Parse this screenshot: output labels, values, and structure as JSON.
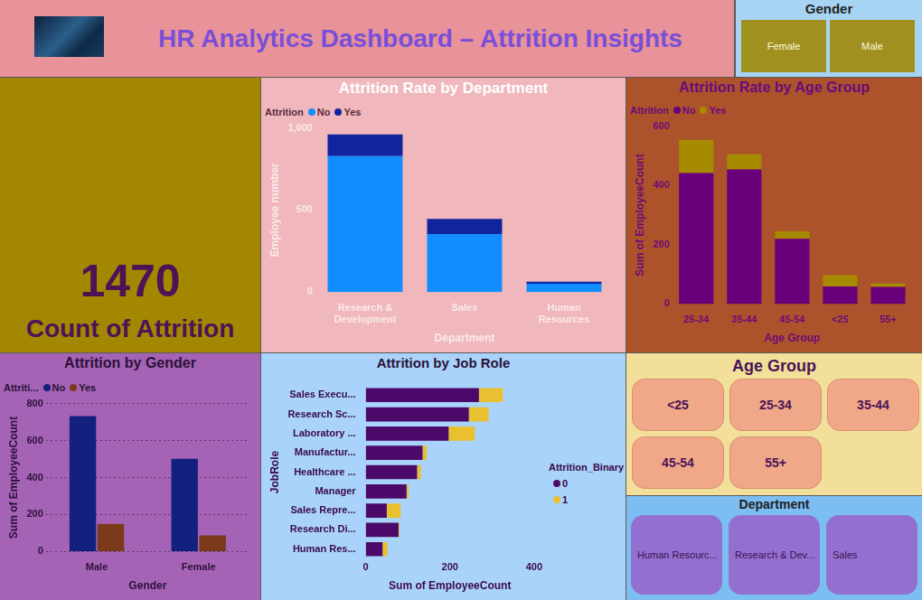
{
  "header": {
    "title": "HR Analytics Dashboard – Attrition Insights"
  },
  "kpi": {
    "value": 1470,
    "label": "Count of Attrition"
  },
  "slicers": [
    {
      "title": "Gender",
      "items": [
        "Female",
        "Male"
      ]
    },
    {
      "title": "Age Group",
      "items": [
        "<25",
        "25-34",
        "35-44",
        "45-54",
        "55+"
      ]
    },
    {
      "title": "Department",
      "items": [
        "Human Resourc...",
        "Research & Dev...",
        "Sales"
      ]
    }
  ],
  "chart_data": [
    {
      "type": "bar",
      "title": "Attrition Rate by Department",
      "legend_title": "Attrition",
      "legend": "top left",
      "stacked": true,
      "grid": false,
      "x_label": "Department",
      "y_label": "Employee number",
      "categories": [
        "Research & Development",
        "Sales",
        "Human Resources"
      ],
      "series": [
        {
          "name": "No",
          "color": "#118dff",
          "values": [
            828,
            354,
            51
          ]
        },
        {
          "name": "Yes",
          "color": "#12239e",
          "values": [
            133,
            92,
            12
          ]
        }
      ],
      "ylim": [
        0,
        1000
      ],
      "yticks": [
        0,
        500,
        {
          "value": 1000,
          "label": "1,000"
        }
      ]
    },
    {
      "type": "bar",
      "title": "Attrition Rate by Age Group",
      "legend_title": "Attrition",
      "legend": "top left",
      "stacked": true,
      "grid": false,
      "x_label": "Age Group",
      "y_label": "Sum of EmployeeCount",
      "categories": [
        "25-34",
        "35-44",
        "45-54",
        "<25",
        "55+"
      ],
      "series": [
        {
          "name": "No",
          "color": "#6b007b",
          "values": [
            442,
            454,
            220,
            59,
            58
          ]
        },
        {
          "name": "Yes",
          "color": "#a68a00",
          "values": [
            112,
            51,
            25,
            38,
            11
          ]
        }
      ],
      "ylim": [
        0,
        600
      ],
      "yticks": [
        0,
        200,
        400,
        600
      ]
    },
    {
      "type": "bar",
      "title": "Attrition by Gender",
      "legend_title": "Attriti...",
      "legend": "top left",
      "stacked": false,
      "grid": true,
      "x_label": "Gender",
      "y_label": "Sum of EmployeeCount",
      "categories": [
        "Male",
        "Female"
      ],
      "series": [
        {
          "name": "No",
          "color": "#12207e",
          "values": [
            732,
            501
          ]
        },
        {
          "name": "Yes",
          "color": "#7b3a1a",
          "values": [
            150,
            87
          ]
        }
      ],
      "ylim": [
        0,
        800
      ],
      "yticks": [
        0,
        200,
        400,
        600,
        800
      ]
    },
    {
      "type": "bar",
      "title": "Attrition by Job Role",
      "legend_title": "Attrition_Binary",
      "legend": "right",
      "orientation": "horizontal",
      "stacked": true,
      "grid": false,
      "x_label": "Sum of EmployeeCount",
      "y_label": "JobRole",
      "categories": [
        "Sales Execu...",
        "Research Sc...",
        "Laboratory ...",
        "Manufactur...",
        "Healthcare ...",
        "Manager",
        "Sales Repre...",
        "Research Di...",
        "Human Res..."
      ],
      "series": [
        {
          "name": "0",
          "color": "#4b0a6a",
          "values": [
            269,
            245,
            197,
            135,
            122,
            97,
            50,
            78,
            40
          ]
        },
        {
          "name": "1",
          "color": "#e8c030",
          "values": [
            57,
            47,
            62,
            10,
            9,
            5,
            33,
            2,
            12
          ]
        }
      ],
      "xlim": [
        0,
        400
      ],
      "xticks": [
        0,
        200,
        400
      ]
    }
  ]
}
